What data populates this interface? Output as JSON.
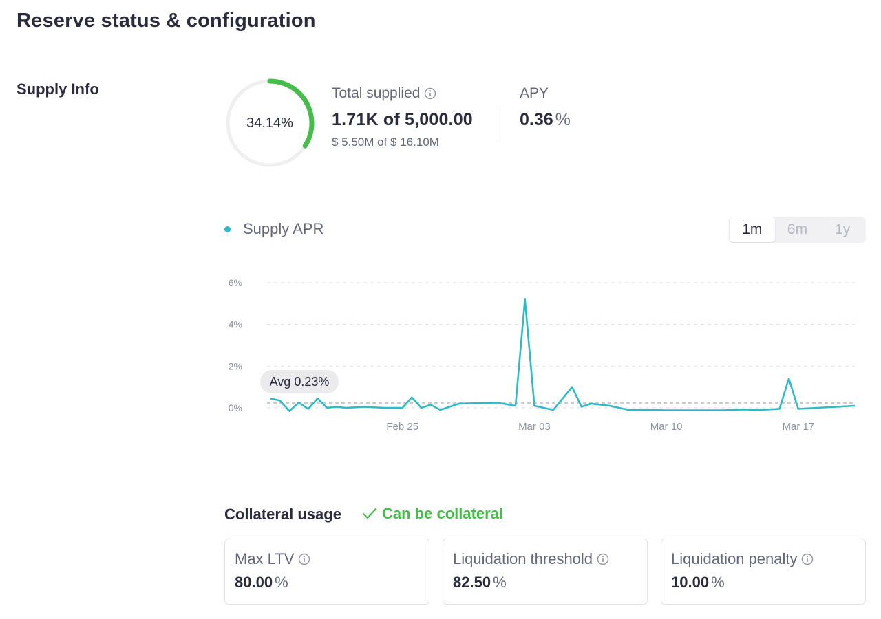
{
  "title": "Reserve status & configuration",
  "section_label": "Supply Info",
  "utilization": {
    "text": "34.14%",
    "fraction": 0.3414,
    "color": "#46bc4b"
  },
  "total_supplied": {
    "label": "Total supplied",
    "value": "1.71K of 5,000.00",
    "usd": "$ 5.50M of $ 16.10M"
  },
  "apy": {
    "label": "APY",
    "value": "0.36",
    "unit": "%"
  },
  "legend_label": "Supply APR",
  "ranges": [
    "1m",
    "6m",
    "1y"
  ],
  "active_range": "1m",
  "avg_label": "Avg 0.23%",
  "colors": {
    "accent": "#2ebac6",
    "success": "#46bc4b"
  },
  "chart_data": {
    "type": "line",
    "title": "",
    "xlabel": "",
    "ylabel": "",
    "ylim": [
      0,
      6
    ],
    "yticks": [
      "0%",
      "2%",
      "4%",
      "6%"
    ],
    "xticks": [
      "Feb 25",
      "Mar 03",
      "Mar 10",
      "Mar 17"
    ],
    "average": 0.23,
    "grid": true,
    "series": [
      {
        "name": "Supply APR",
        "x": [
          "Feb 18",
          "Feb 18 12:00",
          "Feb 19",
          "Feb 19 12:00",
          "Feb 20",
          "Feb 20 12:00",
          "Feb 21",
          "Feb 21 12:00",
          "Feb 22",
          "Feb 23",
          "Feb 24",
          "Feb 25",
          "Feb 25 12:00",
          "Feb 26",
          "Feb 26 12:00",
          "Feb 27",
          "Feb 27 12:00",
          "Feb 28",
          "Mar 01",
          "Mar 02",
          "Mar 02 12:00",
          "Mar 03",
          "Mar 03 12:00",
          "Mar 04",
          "Mar 05",
          "Mar 05 12:00",
          "Mar 06",
          "Mar 07",
          "Mar 07 12:00",
          "Mar 08",
          "Mar 09",
          "Mar 10",
          "Mar 11",
          "Mar 12",
          "Mar 13",
          "Mar 14",
          "Mar 15",
          "Mar 16",
          "Mar 16 12:00",
          "Mar 17",
          "Mar 18",
          "Mar 19",
          "Mar 20"
        ],
        "values": [
          0.45,
          0.35,
          -0.15,
          0.25,
          -0.05,
          0.45,
          0.0,
          0.05,
          0.0,
          0.05,
          0.0,
          0.0,
          0.5,
          0.0,
          0.15,
          -0.1,
          0.05,
          0.2,
          0.25,
          0.1,
          5.2,
          0.1,
          0.0,
          -0.1,
          1.0,
          0.05,
          0.2,
          0.1,
          0.0,
          -0.1,
          -0.1,
          -0.12,
          -0.12,
          -0.12,
          -0.12,
          -0.08,
          -0.1,
          -0.05,
          1.4,
          -0.05,
          0.0,
          0.05,
          0.1
        ]
      }
    ]
  },
  "collateral": {
    "title": "Collateral usage",
    "status": "Can be collateral",
    "cards": [
      {
        "label": "Max LTV",
        "value": "80.00",
        "unit": "%"
      },
      {
        "label": "Liquidation threshold",
        "value": "82.50",
        "unit": "%"
      },
      {
        "label": "Liquidation penalty",
        "value": "10.00",
        "unit": "%"
      }
    ]
  }
}
